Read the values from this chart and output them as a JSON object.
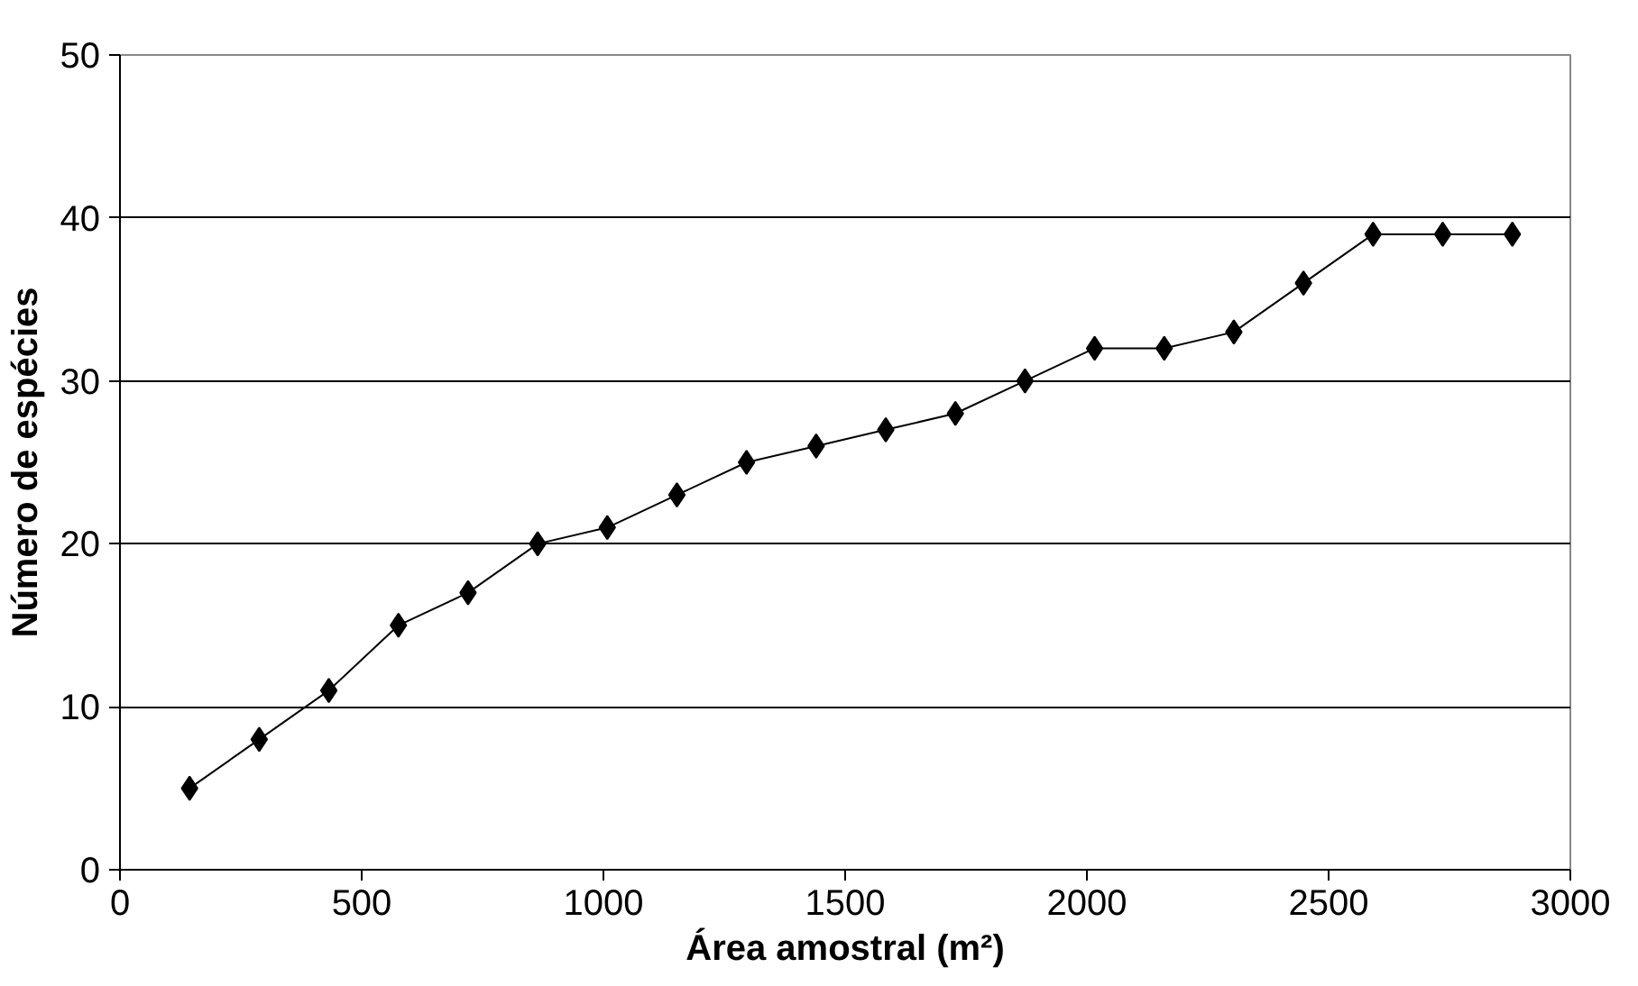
{
  "chart_data": {
    "type": "line",
    "xlabel": "Área amostral (m²)",
    "ylabel": "Número de espécies",
    "x": [
      144,
      288,
      432,
      576,
      720,
      864,
      1008,
      1152,
      1296,
      1440,
      1584,
      1728,
      1872,
      2016,
      2160,
      2304,
      2448,
      2592,
      2736,
      2880
    ],
    "series": [
      {
        "color": "#000000",
        "values": [
          5,
          8,
          11,
          15,
          17,
          20,
          21,
          23,
          25,
          26,
          27,
          28,
          30,
          32,
          32,
          33,
          36,
          39,
          39,
          39
        ]
      }
    ],
    "xlim": [
      0,
      3000
    ],
    "xticks": [
      0,
      500,
      1000,
      1500,
      2000,
      2500,
      3000
    ],
    "ylim": [
      0,
      50
    ],
    "yticks": [
      0,
      10,
      20,
      30,
      40,
      50
    ],
    "grid": "y",
    "marker": "diamond",
    "line_style": "solid"
  }
}
